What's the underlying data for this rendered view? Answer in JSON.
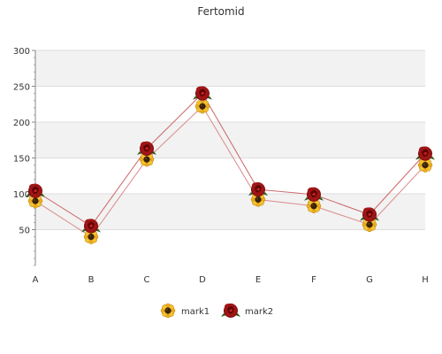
{
  "chart_data": {
    "type": "line",
    "title": "Fertomid",
    "categories": [
      "A",
      "B",
      "C",
      "D",
      "E",
      "F",
      "G",
      "H"
    ],
    "ylim": [
      0,
      300
    ],
    "yticks": [
      50,
      100,
      150,
      200,
      250,
      300
    ],
    "grid": true,
    "legend_position": "bottom-center",
    "series": [
      {
        "name": "mark1",
        "values": [
          90,
          40,
          148,
          222,
          92,
          83,
          57,
          140
        ],
        "color": "#d98c8c",
        "marker": "sunflower-icon"
      },
      {
        "name": "mark2",
        "values": [
          104,
          55,
          163,
          240,
          106,
          99,
          71,
          156
        ],
        "color": "#cc6666",
        "marker": "rose-icon"
      }
    ]
  }
}
